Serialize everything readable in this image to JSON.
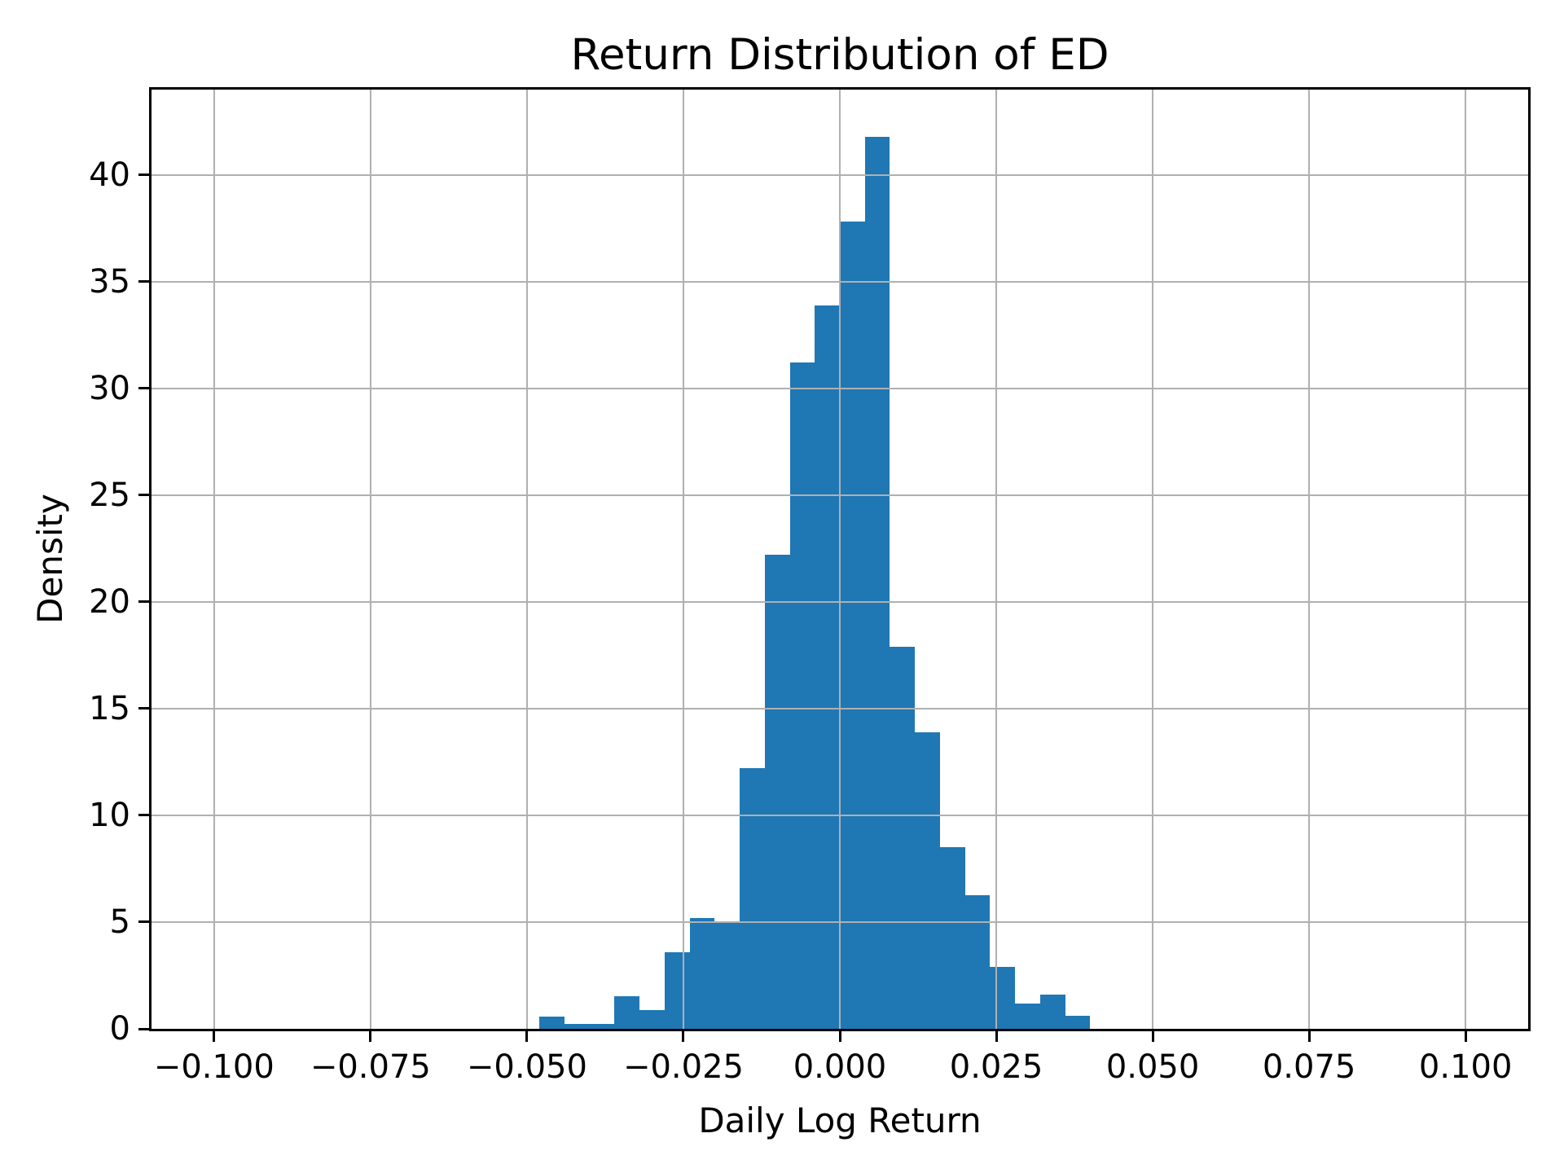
{
  "title": "Return Distribution of ED",
  "chart_data": {
    "type": "bar",
    "subtype": "histogram",
    "title": "Return Distribution of ED",
    "xlabel": "Daily Log Return",
    "ylabel": "Density",
    "bin_start": -0.048,
    "bin_width": 0.004,
    "bin_edges": [
      -0.048,
      -0.044,
      -0.04,
      -0.036,
      -0.032,
      -0.028,
      -0.024,
      -0.02,
      -0.016,
      -0.012,
      -0.008,
      -0.004,
      0.0,
      0.004,
      0.008,
      0.012,
      0.016,
      0.02,
      0.024,
      0.028,
      0.032,
      0.036,
      0.04
    ],
    "values": [
      0.58,
      0.22,
      0.22,
      1.54,
      0.88,
      3.58,
      5.2,
      4.95,
      12.2,
      22.2,
      31.2,
      33.9,
      37.8,
      41.8,
      17.9,
      13.9,
      8.5,
      6.25,
      2.9,
      1.2,
      1.6,
      0.6
    ],
    "xlim": [
      -0.11,
      0.11
    ],
    "ylim": [
      0,
      44
    ],
    "xticks": [
      {
        "value": -0.1,
        "label": "−0.100"
      },
      {
        "value": -0.075,
        "label": "−0.075"
      },
      {
        "value": -0.05,
        "label": "−0.050"
      },
      {
        "value": -0.025,
        "label": "−0.025"
      },
      {
        "value": 0.0,
        "label": "0.000"
      },
      {
        "value": 0.025,
        "label": "0.025"
      },
      {
        "value": 0.05,
        "label": "0.050"
      },
      {
        "value": 0.075,
        "label": "0.075"
      },
      {
        "value": 0.1,
        "label": "0.100"
      }
    ],
    "yticks": [
      {
        "value": 0,
        "label": "0"
      },
      {
        "value": 5,
        "label": "5"
      },
      {
        "value": 10,
        "label": "10"
      },
      {
        "value": 15,
        "label": "15"
      },
      {
        "value": 20,
        "label": "20"
      },
      {
        "value": 25,
        "label": "25"
      },
      {
        "value": 30,
        "label": "30"
      },
      {
        "value": 35,
        "label": "35"
      },
      {
        "value": 40,
        "label": "40"
      }
    ],
    "grid": true,
    "legend": null,
    "bar_color": "#1f77b4",
    "grid_color": "#b0b0b0",
    "axis_color": "#000000",
    "background_color": "#ffffff"
  }
}
